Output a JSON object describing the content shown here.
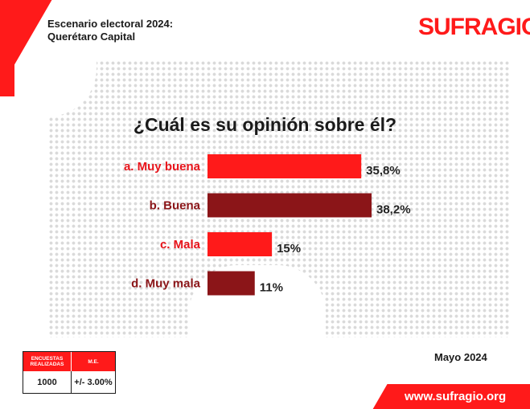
{
  "header": {
    "scenario_line1": "Escenario electoral 2024:",
    "scenario_line2": "Querétaro Capital",
    "logo": "SUFRAGIO"
  },
  "chart_data": {
    "type": "bar",
    "orientation": "horizontal",
    "title": "¿Cuál es su opinión sobre él?",
    "categories": [
      "a. Muy buena",
      "b. Buena",
      "c. Mala",
      "d. Muy mala"
    ],
    "values": [
      35.8,
      38.2,
      15,
      11
    ],
    "value_labels": [
      "35,8%",
      "38,2%",
      "15%",
      "11%"
    ],
    "colors": [
      "#ff1a1a",
      "#8b1518",
      "#ff1a1a",
      "#8b1518"
    ],
    "label_colors": [
      "#e8141b",
      "#8b1518",
      "#e8141b",
      "#8b1518"
    ],
    "xlim": [
      0,
      38.2
    ],
    "unit": "%"
  },
  "footer": {
    "date": "Mayo 2024",
    "website": "www.sufragio.org"
  },
  "survey": {
    "col1_header": "ENCUESTAS REALIZADAS",
    "col2_header": "M.E.",
    "count": "1000",
    "margin": "+/- 3.00%"
  },
  "colors": {
    "accent": "#ff1a1a",
    "dark_red": "#8b1518",
    "text": "#1a1a1a"
  }
}
